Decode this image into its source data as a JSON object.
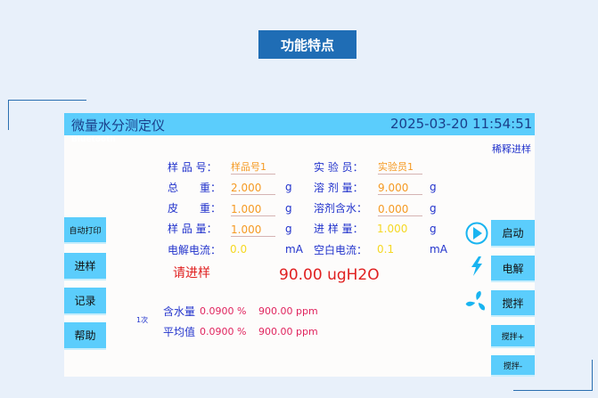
{
  "page_title": "功能特点",
  "app": {
    "title": "微量水分测定仪",
    "datetime": "2025-03-20 11:54:51",
    "bluetooth": "Bluetooth",
    "dilute": "稀释进样"
  },
  "fields": {
    "sample_no": {
      "label": "样 品 号：",
      "value": "样品号1"
    },
    "operator": {
      "label": "实 验 员：",
      "value": "实验员1"
    },
    "total_weight": {
      "label": "总　　重：",
      "value": "2.000",
      "unit": "g"
    },
    "solvent": {
      "label": "溶 剂 量：",
      "value": "9.000",
      "unit": "g"
    },
    "tare": {
      "label": "皮　　重：",
      "value": "1.000",
      "unit": "g"
    },
    "solvent_water": {
      "label": "溶剂含水：",
      "value": "0.000",
      "unit": "g"
    },
    "sample_amount": {
      "label": "样 品 量：",
      "value": "1.000",
      "unit": "g"
    },
    "injection": {
      "label": "进 样 量：",
      "value": "1.000",
      "unit": "g"
    },
    "electrolysis_current": {
      "label": "电解电流：",
      "value": "0.0",
      "unit": "mA"
    },
    "blank_current": {
      "label": "空白电流：",
      "value": "0.1",
      "unit": "mA"
    }
  },
  "status": "请进样",
  "reading": "90.00 ugH2O",
  "count": "1次",
  "results": [
    {
      "label": "含水量",
      "percent": "0.0900 %",
      "ppm": "900.00 ppm"
    },
    {
      "label": "平均值",
      "percent": "0.0900 %",
      "ppm": "900.00 ppm"
    }
  ],
  "left_buttons": [
    "自动打印",
    "进样",
    "记录",
    "帮助"
  ],
  "right_buttons": [
    "启动",
    "电解",
    "搅拌",
    "搅拌+",
    "搅拌-"
  ],
  "icons": {
    "play": "play-circle-icon",
    "bolt": "lightning-icon",
    "fan": "fan-icon"
  },
  "colors": {
    "accent": "#5bcdfc",
    "title_bg": "#1f6db5"
  }
}
